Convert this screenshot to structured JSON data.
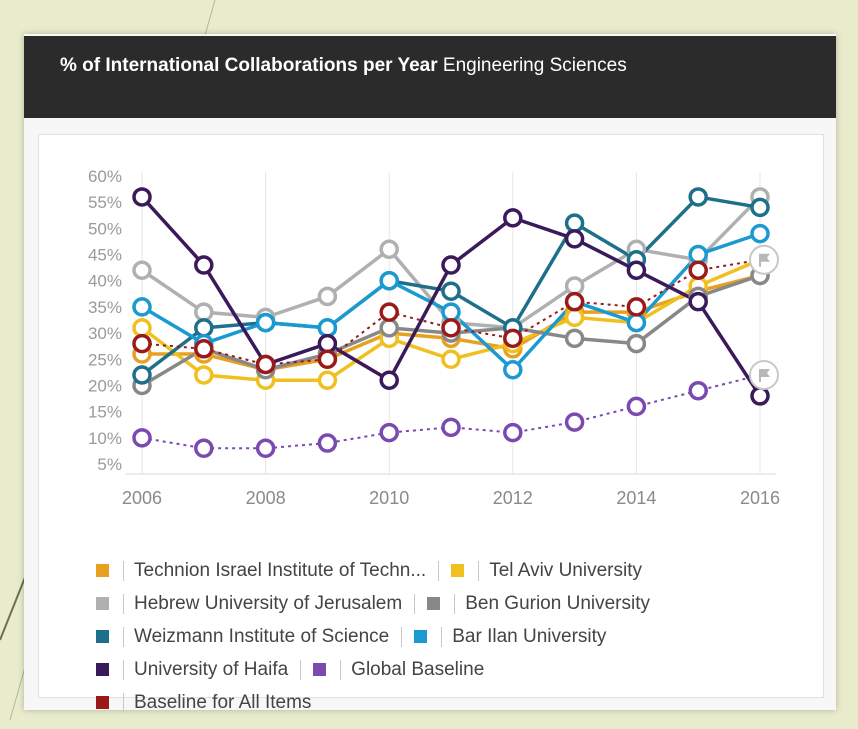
{
  "title": {
    "bold": "% of International Collaborations per Year",
    "rest": "Engineering Sciences"
  },
  "chart_data": {
    "type": "line",
    "x": [
      2006,
      2007,
      2008,
      2009,
      2010,
      2011,
      2012,
      2013,
      2014,
      2015,
      2016
    ],
    "xticks": [
      "2006",
      "2008",
      "2010",
      "2012",
      "2014",
      "2016"
    ],
    "yticks": [
      "60%",
      "55%",
      "50%",
      "45%",
      "40%",
      "35%",
      "30%",
      "25%",
      "20%",
      "15%",
      "10%",
      "5%"
    ],
    "ylim": [
      5,
      60
    ],
    "grid": "vertical",
    "legend_position": "bottom",
    "series": [
      {
        "name": "Technion Israel Institute of Techn...",
        "color": "#e8a020",
        "dash": false,
        "values": [
          26,
          26,
          23,
          25,
          30,
          29,
          27,
          34,
          34,
          38,
          41
        ]
      },
      {
        "name": "Tel Aviv University",
        "color": "#f0c020",
        "dash": false,
        "values": [
          31,
          22,
          21,
          21,
          29,
          25,
          28,
          33,
          32,
          39,
          44
        ]
      },
      {
        "name": "Hebrew University of Jerusalem",
        "color": "#b0b0b0",
        "dash": false,
        "values": [
          42,
          34,
          33,
          37,
          46,
          32,
          31,
          39,
          46,
          44,
          56
        ]
      },
      {
        "name": "Ben Gurion University",
        "color": "#888888",
        "dash": false,
        "values": [
          20,
          27,
          23,
          26,
          31,
          30,
          31,
          29,
          28,
          37,
          41
        ]
      },
      {
        "name": "Weizmann Institute of Science",
        "color": "#1e6f8a",
        "dash": false,
        "values": [
          22,
          31,
          32,
          31,
          40,
          38,
          31,
          51,
          44,
          56,
          54
        ]
      },
      {
        "name": "Bar Ilan University",
        "color": "#1a9ad0",
        "dash": false,
        "values": [
          35,
          28,
          32,
          31,
          40,
          34,
          23,
          36,
          32,
          45,
          49
        ]
      },
      {
        "name": "University of Haifa",
        "color": "#3a1a5a",
        "dash": false,
        "values": [
          56,
          43,
          24,
          28,
          21,
          43,
          52,
          48,
          42,
          36,
          18
        ]
      },
      {
        "name": "Global Baseline",
        "color": "#7a4ab0",
        "dash": true,
        "values": [
          10,
          8,
          8,
          9,
          11,
          12,
          11,
          13,
          16,
          19,
          22
        ]
      },
      {
        "name": "Baseline for All Items",
        "color": "#9a1a1a",
        "dash": true,
        "values": [
          28,
          27,
          24,
          25,
          34,
          31,
          29,
          36,
          35,
          42,
          44
        ]
      }
    ]
  },
  "legend_rows": [
    [
      0,
      1
    ],
    [
      2,
      3
    ],
    [
      4,
      5
    ],
    [
      6,
      7
    ],
    [
      8
    ]
  ]
}
